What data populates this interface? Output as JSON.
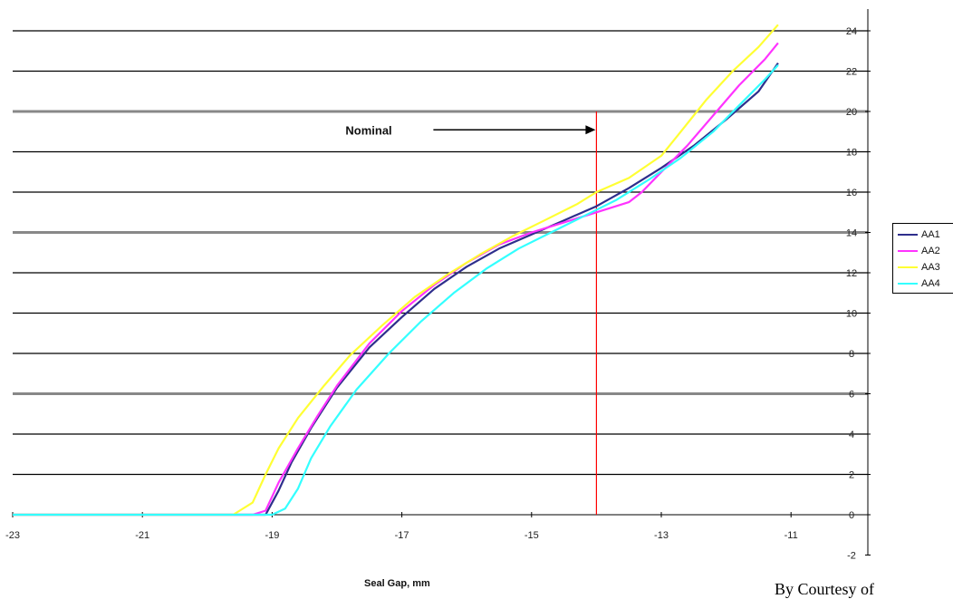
{
  "chart_data": {
    "type": "line",
    "title": "",
    "xlabel": "Seal Gap, mm",
    "ylabel": "",
    "xlim": [
      -23,
      -10.7
    ],
    "ylim": [
      -2,
      25
    ],
    "x_ticks": [
      -23,
      -21,
      -19,
      -17,
      -15,
      -13,
      -11
    ],
    "y_ticks": [
      -2,
      0,
      2,
      4,
      6,
      8,
      10,
      12,
      14,
      16,
      18,
      20,
      22,
      24
    ],
    "gridlines": "horizontal",
    "legend_position": "right",
    "annotation": {
      "text": "Nominal",
      "x": -14.0,
      "arrow_y": 19.0
    },
    "series": [
      {
        "name": "AA1",
        "color": "#2e2e8c",
        "points": [
          [
            -23,
            0
          ],
          [
            -19.3,
            0
          ],
          [
            -19.1,
            0
          ],
          [
            -18.9,
            1.2
          ],
          [
            -18.7,
            2.6
          ],
          [
            -18.4,
            4.3
          ],
          [
            -18.0,
            6.3
          ],
          [
            -17.5,
            8.3
          ],
          [
            -17.0,
            9.8
          ],
          [
            -16.5,
            11.2
          ],
          [
            -16.0,
            12.3
          ],
          [
            -15.5,
            13.2
          ],
          [
            -15.0,
            13.9
          ],
          [
            -14.5,
            14.6
          ],
          [
            -14.0,
            15.3
          ],
          [
            -13.5,
            16.2
          ],
          [
            -13.0,
            17.2
          ],
          [
            -12.5,
            18.3
          ],
          [
            -12.0,
            19.6
          ],
          [
            -11.5,
            21.0
          ],
          [
            -11.2,
            22.4
          ]
        ]
      },
      {
        "name": "AA2",
        "color": "#ff33ff",
        "points": [
          [
            -23,
            0
          ],
          [
            -19.3,
            0
          ],
          [
            -19.1,
            0.2
          ],
          [
            -18.9,
            1.6
          ],
          [
            -18.6,
            3.3
          ],
          [
            -18.3,
            4.9
          ],
          [
            -18.0,
            6.4
          ],
          [
            -17.5,
            8.5
          ],
          [
            -17.0,
            10.1
          ],
          [
            -16.5,
            11.4
          ],
          [
            -16.0,
            12.5
          ],
          [
            -15.5,
            13.4
          ],
          [
            -15.0,
            14.0
          ],
          [
            -14.5,
            14.5
          ],
          [
            -14.0,
            15.0
          ],
          [
            -13.5,
            15.5
          ],
          [
            -13.3,
            16.0
          ],
          [
            -13.0,
            17.0
          ],
          [
            -12.6,
            18.3
          ],
          [
            -12.2,
            19.8
          ],
          [
            -11.8,
            21.3
          ],
          [
            -11.4,
            22.6
          ],
          [
            -11.2,
            23.4
          ]
        ]
      },
      {
        "name": "AA3",
        "color": "#ffff33",
        "points": [
          [
            -23,
            0
          ],
          [
            -19.6,
            0
          ],
          [
            -19.3,
            0.6
          ],
          [
            -19.1,
            2.0
          ],
          [
            -18.9,
            3.3
          ],
          [
            -18.6,
            4.8
          ],
          [
            -18.2,
            6.4
          ],
          [
            -17.8,
            7.9
          ],
          [
            -17.3,
            9.4
          ],
          [
            -16.8,
            10.8
          ],
          [
            -16.3,
            11.9
          ],
          [
            -15.8,
            12.9
          ],
          [
            -15.3,
            13.8
          ],
          [
            -14.8,
            14.6
          ],
          [
            -14.3,
            15.4
          ],
          [
            -14.0,
            16.0
          ],
          [
            -13.5,
            16.7
          ],
          [
            -13.0,
            17.8
          ],
          [
            -12.7,
            19.0
          ],
          [
            -12.3,
            20.6
          ],
          [
            -11.9,
            22.0
          ],
          [
            -11.5,
            23.2
          ],
          [
            -11.2,
            24.3
          ]
        ]
      },
      {
        "name": "AA4",
        "color": "#33ffff",
        "points": [
          [
            -23,
            0
          ],
          [
            -19.0,
            0
          ],
          [
            -18.8,
            0.3
          ],
          [
            -18.6,
            1.3
          ],
          [
            -18.4,
            2.8
          ],
          [
            -18.1,
            4.4
          ],
          [
            -17.7,
            6.2
          ],
          [
            -17.2,
            8.0
          ],
          [
            -16.7,
            9.6
          ],
          [
            -16.2,
            11.0
          ],
          [
            -15.7,
            12.2
          ],
          [
            -15.2,
            13.2
          ],
          [
            -14.7,
            14.0
          ],
          [
            -14.2,
            14.8
          ],
          [
            -13.7,
            15.6
          ],
          [
            -13.2,
            16.6
          ],
          [
            -12.7,
            17.7
          ],
          [
            -12.2,
            19.0
          ],
          [
            -11.8,
            20.3
          ],
          [
            -11.4,
            21.6
          ],
          [
            -11.2,
            22.3
          ]
        ]
      }
    ]
  },
  "credit_text": "By Courtesy of"
}
